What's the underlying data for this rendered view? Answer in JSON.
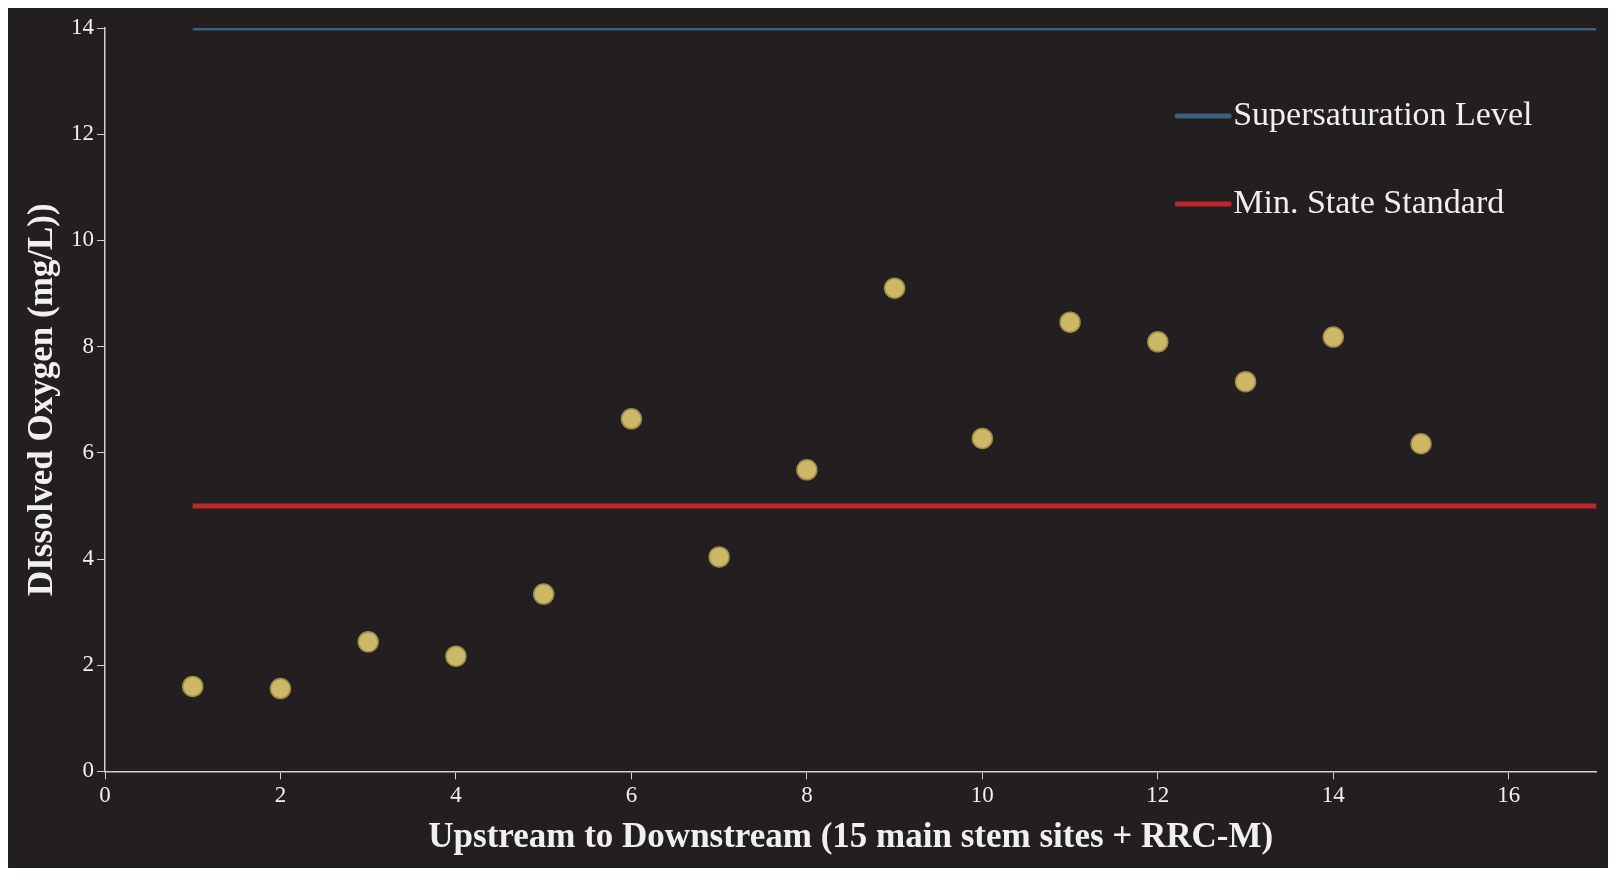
{
  "chart_data": {
    "type": "scatter",
    "xlabel": "Upstream to Downstream (15 main stem sites + RRC-M)",
    "ylabel": "DIssolved Oxygen (mg/L))",
    "xlim": [
      0,
      17
    ],
    "xticks": [
      0,
      2,
      4,
      6,
      8,
      10,
      12,
      14,
      16
    ],
    "ylim": [
      0,
      14
    ],
    "yticks": [
      0,
      2,
      4,
      6,
      8,
      10,
      12,
      14
    ],
    "grid": false,
    "legend": "top right",
    "marker": "circle",
    "series": [
      {
        "type": "line",
        "name": "Supersaturation Level",
        "color": "#3d5f78",
        "x": [
          1,
          17
        ],
        "values": [
          14,
          14
        ],
        "marker": "none"
      },
      {
        "type": "line",
        "name": "Min. State Standard",
        "color": "#c0272d",
        "x": [
          1,
          17
        ],
        "values": [
          5,
          5
        ],
        "marker": "none"
      },
      {
        "type": "scatter",
        "color": "#cdb868",
        "x": [
          1,
          2,
          3,
          4,
          5,
          6,
          7,
          8,
          9,
          10,
          11,
          12,
          13,
          14,
          15
        ],
        "values": [
          1.6,
          1.56,
          2.44,
          2.17,
          3.34,
          6.64,
          4.04,
          5.68,
          9.1,
          6.27,
          8.46,
          8.09,
          7.34,
          8.18,
          6.17
        ]
      }
    ]
  }
}
